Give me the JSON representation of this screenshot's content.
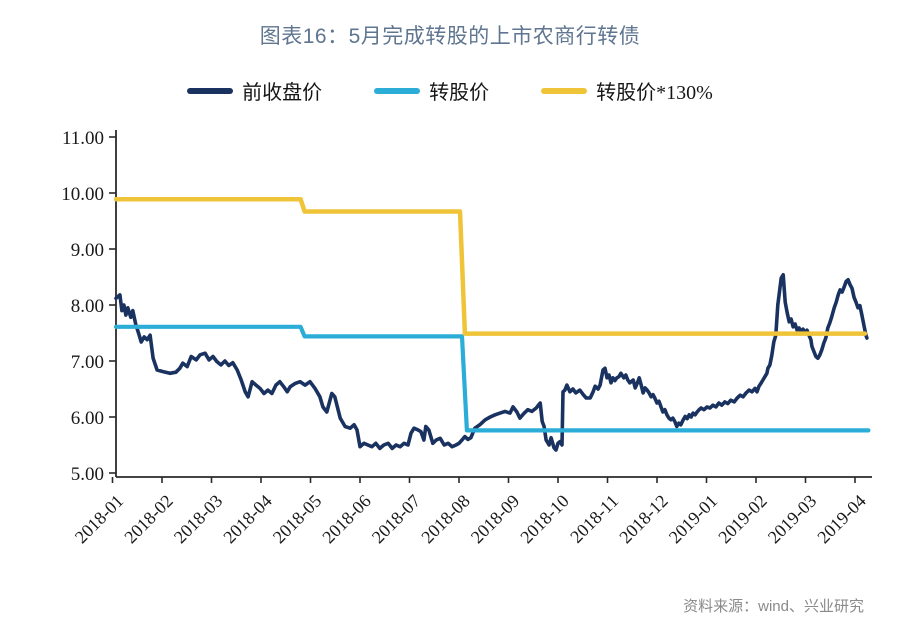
{
  "title": "图表16：5月完成转股的上市农商行转债",
  "source": "资料来源：wind、兴业研究",
  "colors": {
    "title": "#5f7590",
    "source": "#8a8a8a",
    "axis": "#2a2a2a",
    "close_price": "#1a3260",
    "conversion_price": "#2badd8",
    "conversion_price_130": "#efc438"
  },
  "chart_data": {
    "type": "line",
    "title": "图表16：5月完成转股的上市农商行转债",
    "xlabel": "",
    "ylabel": "",
    "x_unit": "months since 2018-01 (fractional)",
    "xlim": [
      -0.1,
      15.4
    ],
    "ylim": [
      5,
      11
    ],
    "grid": false,
    "legend_position": "top",
    "x_tick_labels": [
      "2018-01",
      "2018-02",
      "2018-03",
      "2018-04",
      "2018-05",
      "2018-06",
      "2018-07",
      "2018-08",
      "2018-09",
      "2018-10",
      "2018-11",
      "2018-12",
      "2019-01",
      "2019-02",
      "2019-03",
      "2019-04"
    ],
    "y_ticks": [
      5,
      6,
      7,
      8,
      9,
      10,
      11
    ],
    "y_tick_labels": [
      "5.00",
      "6.00",
      "7.00",
      "8.00",
      "9.00",
      "10.00",
      "11.00"
    ],
    "series": [
      {
        "name": "前收盘价",
        "color": "#1a3260",
        "width": 3.6,
        "points": [
          [
            0.07,
            8.12
          ],
          [
            0.15,
            8.18
          ],
          [
            0.19,
            7.9
          ],
          [
            0.23,
            8.0
          ],
          [
            0.27,
            7.82
          ],
          [
            0.31,
            7.95
          ],
          [
            0.37,
            7.78
          ],
          [
            0.41,
            7.9
          ],
          [
            0.47,
            7.65
          ],
          [
            0.54,
            7.46
          ],
          [
            0.58,
            7.34
          ],
          [
            0.64,
            7.43
          ],
          [
            0.7,
            7.38
          ],
          [
            0.76,
            7.46
          ],
          [
            0.82,
            7.05
          ],
          [
            0.9,
            6.84
          ],
          [
            1.02,
            6.81
          ],
          [
            1.16,
            6.78
          ],
          [
            1.28,
            6.8
          ],
          [
            1.36,
            6.87
          ],
          [
            1.42,
            6.96
          ],
          [
            1.51,
            6.9
          ],
          [
            1.59,
            7.08
          ],
          [
            1.69,
            7.02
          ],
          [
            1.77,
            7.11
          ],
          [
            1.87,
            7.14
          ],
          [
            1.95,
            7.02
          ],
          [
            2.03,
            7.08
          ],
          [
            2.11,
            6.99
          ],
          [
            2.19,
            6.93
          ],
          [
            2.27,
            7.0
          ],
          [
            2.35,
            6.92
          ],
          [
            2.43,
            6.97
          ],
          [
            2.52,
            6.84
          ],
          [
            2.6,
            6.66
          ],
          [
            2.68,
            6.45
          ],
          [
            2.74,
            6.36
          ],
          [
            2.82,
            6.63
          ],
          [
            2.9,
            6.57
          ],
          [
            2.98,
            6.51
          ],
          [
            3.06,
            6.42
          ],
          [
            3.14,
            6.48
          ],
          [
            3.22,
            6.42
          ],
          [
            3.3,
            6.57
          ],
          [
            3.38,
            6.63
          ],
          [
            3.46,
            6.54
          ],
          [
            3.53,
            6.45
          ],
          [
            3.59,
            6.54
          ],
          [
            3.69,
            6.6
          ],
          [
            3.79,
            6.63
          ],
          [
            3.89,
            6.57
          ],
          [
            3.99,
            6.63
          ],
          [
            4.09,
            6.51
          ],
          [
            4.19,
            6.36
          ],
          [
            4.25,
            6.18
          ],
          [
            4.33,
            6.09
          ],
          [
            4.43,
            6.42
          ],
          [
            4.49,
            6.36
          ],
          [
            4.6,
            5.98
          ],
          [
            4.7,
            5.83
          ],
          [
            4.8,
            5.8
          ],
          [
            4.88,
            5.86
          ],
          [
            4.94,
            5.77
          ],
          [
            5.0,
            5.47
          ],
          [
            5.08,
            5.53
          ],
          [
            5.16,
            5.5
          ],
          [
            5.24,
            5.47
          ],
          [
            5.32,
            5.53
          ],
          [
            5.4,
            5.44
          ],
          [
            5.48,
            5.5
          ],
          [
            5.57,
            5.53
          ],
          [
            5.65,
            5.44
          ],
          [
            5.73,
            5.5
          ],
          [
            5.81,
            5.47
          ],
          [
            5.89,
            5.53
          ],
          [
            5.97,
            5.5
          ],
          [
            6.03,
            5.71
          ],
          [
            6.09,
            5.8
          ],
          [
            6.17,
            5.77
          ],
          [
            6.23,
            5.74
          ],
          [
            6.29,
            5.59
          ],
          [
            6.33,
            5.83
          ],
          [
            6.39,
            5.77
          ],
          [
            6.47,
            5.53
          ],
          [
            6.54,
            5.59
          ],
          [
            6.62,
            5.62
          ],
          [
            6.7,
            5.5
          ],
          [
            6.78,
            5.53
          ],
          [
            6.86,
            5.47
          ],
          [
            6.94,
            5.5
          ],
          [
            7.0,
            5.53
          ],
          [
            7.06,
            5.59
          ],
          [
            7.12,
            5.65
          ],
          [
            7.18,
            5.6
          ],
          [
            7.24,
            5.63
          ],
          [
            7.32,
            5.8
          ],
          [
            7.42,
            5.86
          ],
          [
            7.53,
            5.95
          ],
          [
            7.63,
            6.0
          ],
          [
            7.73,
            6.04
          ],
          [
            7.83,
            6.07
          ],
          [
            7.93,
            6.1
          ],
          [
            8.03,
            6.07
          ],
          [
            8.09,
            6.18
          ],
          [
            8.17,
            6.09
          ],
          [
            8.23,
            5.98
          ],
          [
            8.31,
            6.06
          ],
          [
            8.39,
            6.13
          ],
          [
            8.47,
            6.1
          ],
          [
            8.56,
            6.16
          ],
          [
            8.64,
            6.25
          ],
          [
            8.68,
            5.92
          ],
          [
            8.72,
            5.83
          ],
          [
            8.76,
            5.59
          ],
          [
            8.82,
            5.5
          ],
          [
            8.86,
            5.63
          ],
          [
            8.92,
            5.45
          ],
          [
            8.96,
            5.41
          ],
          [
            9.0,
            5.53
          ],
          [
            9.04,
            5.56
          ],
          [
            9.08,
            5.5
          ],
          [
            9.1,
            6.45
          ],
          [
            9.14,
            6.48
          ],
          [
            9.18,
            6.57
          ],
          [
            9.24,
            6.45
          ],
          [
            9.3,
            6.5
          ],
          [
            9.36,
            6.43
          ],
          [
            9.44,
            6.48
          ],
          [
            9.51,
            6.4
          ],
          [
            9.57,
            6.34
          ],
          [
            9.65,
            6.34
          ],
          [
            9.71,
            6.45
          ],
          [
            9.75,
            6.55
          ],
          [
            9.81,
            6.5
          ],
          [
            9.85,
            6.57
          ],
          [
            9.91,
            6.84
          ],
          [
            9.95,
            6.87
          ],
          [
            9.99,
            6.7
          ],
          [
            10.03,
            6.75
          ],
          [
            10.07,
            6.61
          ],
          [
            10.11,
            6.7
          ],
          [
            10.15,
            6.65
          ],
          [
            10.19,
            6.7
          ],
          [
            10.23,
            6.72
          ],
          [
            10.27,
            6.78
          ],
          [
            10.33,
            6.7
          ],
          [
            10.37,
            6.75
          ],
          [
            10.41,
            6.66
          ],
          [
            10.45,
            6.61
          ],
          [
            10.52,
            6.66
          ],
          [
            10.56,
            6.52
          ],
          [
            10.6,
            6.6
          ],
          [
            10.64,
            6.7
          ],
          [
            10.68,
            6.57
          ],
          [
            10.72,
            6.43
          ],
          [
            10.76,
            6.52
          ],
          [
            10.8,
            6.48
          ],
          [
            10.84,
            6.43
          ],
          [
            10.88,
            6.36
          ],
          [
            10.92,
            6.4
          ],
          [
            10.96,
            6.33
          ],
          [
            11.0,
            6.25
          ],
          [
            11.04,
            6.28
          ],
          [
            11.08,
            6.18
          ],
          [
            11.12,
            6.09
          ],
          [
            11.16,
            6.13
          ],
          [
            11.2,
            6.04
          ],
          [
            11.24,
            5.98
          ],
          [
            11.28,
            5.95
          ],
          [
            11.32,
            5.98
          ],
          [
            11.36,
            5.92
          ],
          [
            11.4,
            5.83
          ],
          [
            11.44,
            5.89
          ],
          [
            11.48,
            5.86
          ],
          [
            11.53,
            5.95
          ],
          [
            11.57,
            6.01
          ],
          [
            11.61,
            5.97
          ],
          [
            11.65,
            6.04
          ],
          [
            11.69,
            6.0
          ],
          [
            11.73,
            6.07
          ],
          [
            11.77,
            6.04
          ],
          [
            11.81,
            6.09
          ],
          [
            11.85,
            6.13
          ],
          [
            11.89,
            6.16
          ],
          [
            11.95,
            6.13
          ],
          [
            12.01,
            6.18
          ],
          [
            12.07,
            6.16
          ],
          [
            12.13,
            6.21
          ],
          [
            12.19,
            6.18
          ],
          [
            12.25,
            6.25
          ],
          [
            12.31,
            6.21
          ],
          [
            12.37,
            6.27
          ],
          [
            12.43,
            6.24
          ],
          [
            12.49,
            6.3
          ],
          [
            12.56,
            6.27
          ],
          [
            12.62,
            6.34
          ],
          [
            12.68,
            6.39
          ],
          [
            12.74,
            6.36
          ],
          [
            12.8,
            6.43
          ],
          [
            12.86,
            6.48
          ],
          [
            12.92,
            6.45
          ],
          [
            12.98,
            6.51
          ],
          [
            13.02,
            6.45
          ],
          [
            13.06,
            6.55
          ],
          [
            13.1,
            6.6
          ],
          [
            13.14,
            6.66
          ],
          [
            13.18,
            6.72
          ],
          [
            13.22,
            6.78
          ],
          [
            13.24,
            6.87
          ],
          [
            13.28,
            6.93
          ],
          [
            13.32,
            7.1
          ],
          [
            13.36,
            7.34
          ],
          [
            13.4,
            7.46
          ],
          [
            13.44,
            8.0
          ],
          [
            13.51,
            8.48
          ],
          [
            13.55,
            8.54
          ],
          [
            13.59,
            8.05
          ],
          [
            13.63,
            7.86
          ],
          [
            13.67,
            7.7
          ],
          [
            13.71,
            7.75
          ],
          [
            13.75,
            7.61
          ],
          [
            13.79,
            7.66
          ],
          [
            13.83,
            7.55
          ],
          [
            13.87,
            7.59
          ],
          [
            13.91,
            7.52
          ],
          [
            13.95,
            7.57
          ],
          [
            13.99,
            7.5
          ],
          [
            14.03,
            7.55
          ],
          [
            14.07,
            7.46
          ],
          [
            14.11,
            7.38
          ],
          [
            14.13,
            7.26
          ],
          [
            14.17,
            7.17
          ],
          [
            14.21,
            7.08
          ],
          [
            14.25,
            7.05
          ],
          [
            14.29,
            7.11
          ],
          [
            14.33,
            7.2
          ],
          [
            14.37,
            7.32
          ],
          [
            14.41,
            7.41
          ],
          [
            14.45,
            7.59
          ],
          [
            14.49,
            7.68
          ],
          [
            14.53,
            7.79
          ],
          [
            14.58,
            7.95
          ],
          [
            14.62,
            8.05
          ],
          [
            14.66,
            8.18
          ],
          [
            14.7,
            8.27
          ],
          [
            14.74,
            8.23
          ],
          [
            14.78,
            8.32
          ],
          [
            14.82,
            8.42
          ],
          [
            14.86,
            8.45
          ],
          [
            14.9,
            8.36
          ],
          [
            14.94,
            8.3
          ],
          [
            14.98,
            8.14
          ],
          [
            15.02,
            8.05
          ],
          [
            15.06,
            7.95
          ],
          [
            15.1,
            7.99
          ],
          [
            15.14,
            7.82
          ],
          [
            15.18,
            7.64
          ],
          [
            15.22,
            7.46
          ],
          [
            15.24,
            7.41
          ]
        ]
      },
      {
        "name": "转股价",
        "color": "#2badd8",
        "width": 4.2,
        "points": [
          [
            0.07,
            7.61
          ],
          [
            3.8,
            7.61
          ],
          [
            3.88,
            7.44
          ],
          [
            7.06,
            7.44
          ],
          [
            7.16,
            5.76
          ],
          [
            15.27,
            5.76
          ]
        ]
      },
      {
        "name": "转股价*130%",
        "color": "#efc438",
        "width": 4.5,
        "points": [
          [
            0.07,
            9.89
          ],
          [
            3.8,
            9.89
          ],
          [
            3.88,
            9.67
          ],
          [
            7.02,
            9.67
          ],
          [
            7.12,
            7.49
          ],
          [
            15.2,
            7.49
          ]
        ]
      }
    ]
  }
}
